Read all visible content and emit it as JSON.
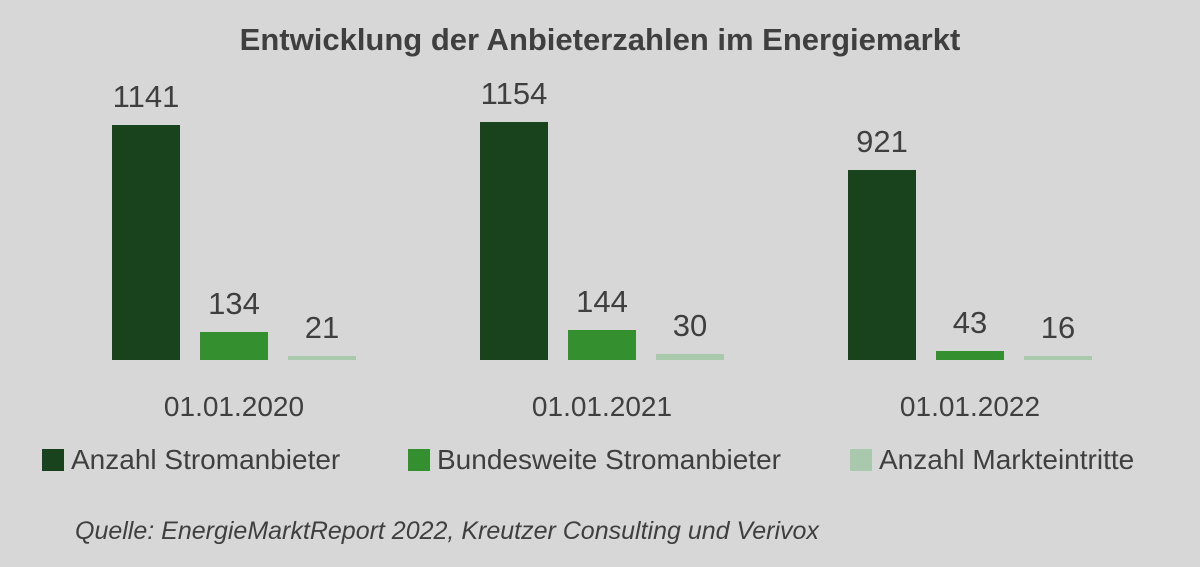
{
  "title": "Entwicklung der Anbieterzahlen im Energiemarkt",
  "source_note": "Quelle: EnergieMarktReport 2022, Kreutzer Consulting und Verivox",
  "colors": {
    "background": "#d7d7d7",
    "text": "#3f3f3f",
    "series_dark_green": "#18431c",
    "series_mid_green": "#348f2f",
    "series_light_green": "#a9c9ac"
  },
  "chart_data": {
    "type": "bar",
    "title": "Entwicklung der Anbieterzahlen im Energiemarkt",
    "categories": [
      "01.01.2020",
      "01.01.2021",
      "01.01.2022"
    ],
    "series": [
      {
        "name": "Anzahl Stromanbieter",
        "color": "#18431c",
        "values": [
          1141,
          1154,
          921
        ]
      },
      {
        "name": "Bundesweite Stromanbieter",
        "color": "#348f2f",
        "values": [
          134,
          144,
          43
        ]
      },
      {
        "name": "Anzahl Markteintritte",
        "color": "#a9c9ac",
        "values": [
          21,
          30,
          16
        ]
      }
    ],
    "xlabel": "",
    "ylabel": "",
    "ylim": [
      0,
      1200
    ],
    "grid": false,
    "axes_shown": false,
    "data_labels": true,
    "legend_position": "bottom"
  }
}
